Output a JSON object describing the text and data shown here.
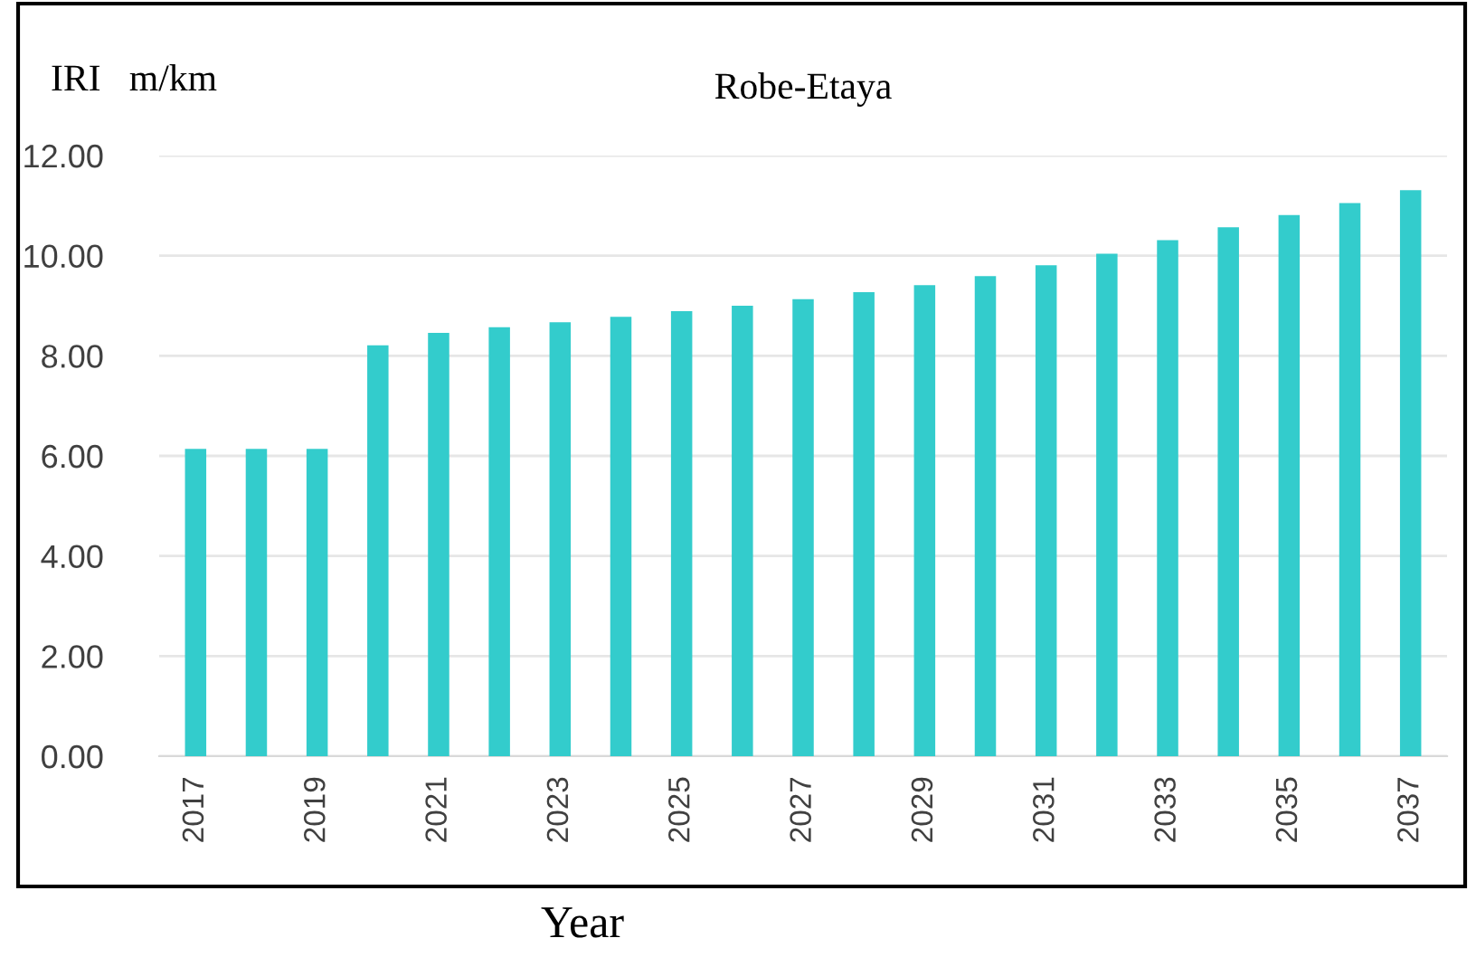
{
  "chart_data": {
    "type": "bar",
    "title": "Robe-Etaya",
    "ylabel": "IRI   m/km",
    "xlabel": "Year",
    "categories": [
      "2017",
      null,
      "2019",
      null,
      "2021",
      null,
      "2023",
      null,
      "2025",
      null,
      "2027",
      null,
      "2029",
      null,
      "2031",
      null,
      "2033",
      null,
      "2035",
      null,
      "2037"
    ],
    "series": [
      {
        "color": "#33cccc",
        "values": [
          6.14,
          6.14,
          6.14,
          8.21,
          8.46,
          8.57,
          8.67,
          8.78,
          8.89,
          9.0,
          9.13,
          9.27,
          9.41,
          9.59,
          9.81,
          10.04,
          10.31,
          10.57,
          10.81,
          11.05,
          11.31
        ]
      }
    ],
    "ylim": [
      0,
      12
    ],
    "yticks": [
      {
        "value": 0,
        "label": "0.00"
      },
      {
        "value": 2,
        "label": "2.00"
      },
      {
        "value": 4,
        "label": "4.00"
      },
      {
        "value": 6,
        "label": "6.00"
      },
      {
        "value": 8,
        "label": "8.00"
      },
      {
        "value": 10,
        "label": "10.00"
      },
      {
        "value": 12,
        "label": "12.00"
      }
    ],
    "grid": "y",
    "legend": false
  }
}
